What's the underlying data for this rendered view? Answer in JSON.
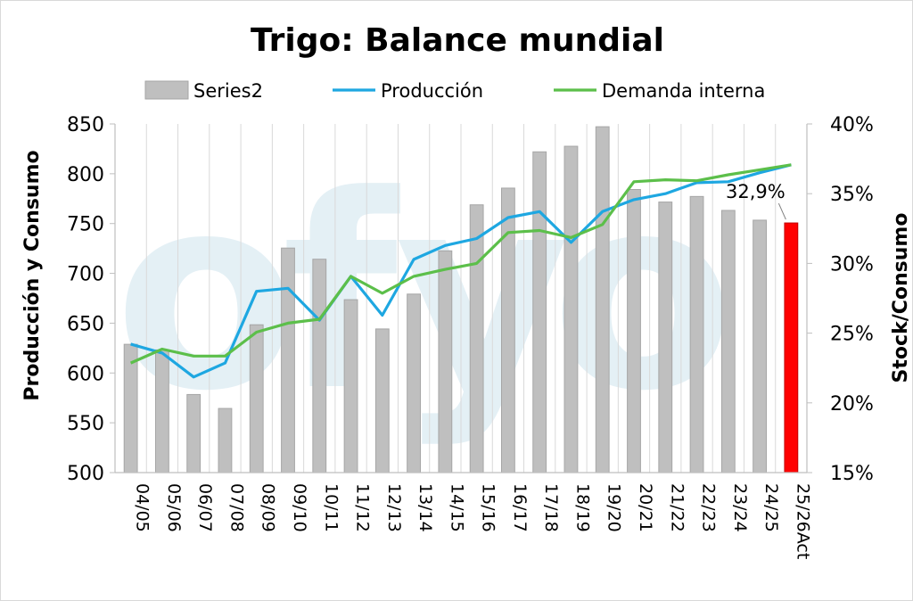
{
  "chart_data": {
    "type": "bar",
    "title": "Trigo: Balance mundial",
    "watermark": "ofyo",
    "ylabel_left": "Producción y Consumo",
    "ylabel_right": "Stock/Consumo",
    "ylim_left": [
      500,
      850
    ],
    "yticks_left": [
      "850",
      "800",
      "750",
      "700",
      "650",
      "600",
      "550",
      "500"
    ],
    "ylim_right": [
      15,
      40
    ],
    "yticks_right": [
      "40%",
      "35%",
      "30%",
      "25%",
      "20%",
      "15%"
    ],
    "grid": "vertical",
    "legend_position": "top",
    "categories": [
      "04/05",
      "05/06",
      "06/07",
      "07/08",
      "08/09",
      "09/10",
      "10/11",
      "11/12",
      "12/13",
      "13/14",
      "14/15",
      "15/16",
      "16/17",
      "17/18",
      "18/19",
      "19/20",
      "20/21",
      "21/22",
      "22/23",
      "23/24",
      "24/25",
      "25/26Act"
    ],
    "series": [
      {
        "name": "Series2",
        "kind": "bar",
        "axis": "right",
        "color": "#bfbfbf",
        "highlight_color": "#ff0000",
        "highlight_index": 21,
        "values": [
          24.2,
          23.8,
          20.6,
          19.6,
          25.6,
          31.1,
          30.3,
          27.4,
          25.3,
          27.8,
          30.9,
          34.2,
          35.4,
          38.0,
          38.4,
          39.8,
          35.3,
          34.4,
          34.8,
          33.8,
          33.1,
          32.9
        ]
      },
      {
        "name": "Producción",
        "kind": "line",
        "axis": "left",
        "color": "#1ea7e1",
        "values": [
          629,
          620,
          596,
          610,
          682,
          685,
          653,
          697,
          658,
          714,
          728,
          735,
          756,
          762,
          731,
          762,
          774,
          780,
          791,
          792,
          801,
          809
        ]
      },
      {
        "name": "Demanda interna",
        "kind": "line",
        "axis": "left",
        "color": "#5cbf4a",
        "values": [
          610,
          624,
          617,
          617,
          641,
          650,
          654,
          697,
          680,
          697,
          704,
          710,
          741,
          743,
          736,
          749,
          792,
          794,
          793,
          799,
          804,
          809
        ]
      }
    ],
    "data_labels": [
      {
        "category": "25/26Act",
        "text": "32,9%"
      }
    ]
  }
}
